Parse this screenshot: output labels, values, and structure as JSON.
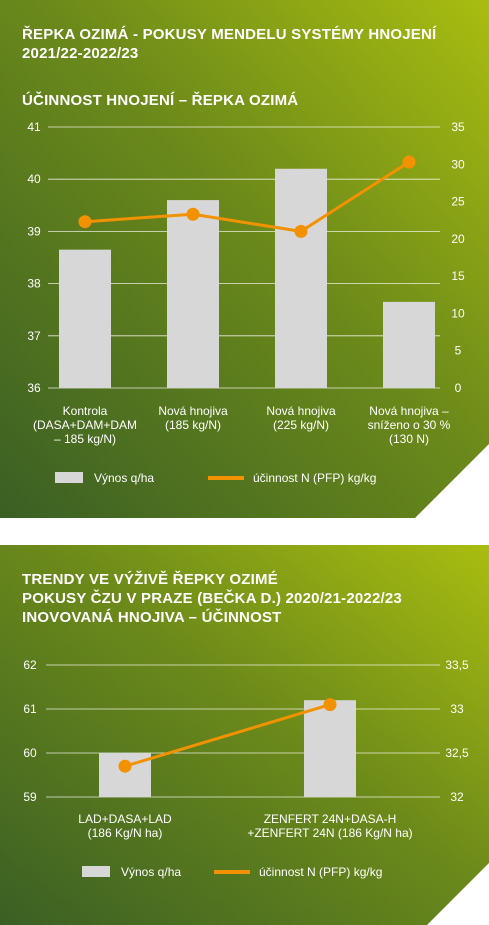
{
  "colors": {
    "bg_dark": "#3a5f24",
    "bg_light": "#a9bd10",
    "bar": "#d7d7d7",
    "line": "#f39200",
    "text": "#ffffff"
  },
  "chart_data": [
    {
      "type": "bar",
      "title": "ŘEPKA OZIMÁ - POKUSY MENDELU SYSTÉMY HNOJENÍ 2021/22-2022/23",
      "subtitle": "ÚČINNOST HNOJENÍ – ŘEPKA OZIMÁ",
      "categories": [
        [
          "Kontrola",
          "(DASA+DAM+DAM",
          "– 185 kg/N)"
        ],
        [
          "Nová hnojiva",
          "(185 kg/N)"
        ],
        [
          "Nová hnojiva",
          "(225 kg/N)"
        ],
        [
          "Nová hnojiva –",
          "sníženo o 30 %",
          "(130 N)"
        ]
      ],
      "series": [
        {
          "name": "Výnos q/ha",
          "type": "bar",
          "axis": "left",
          "values": [
            38.65,
            39.6,
            40.2,
            37.65
          ]
        },
        {
          "name": "účinnost N (PFP) kg/kg",
          "type": "line",
          "axis": "right",
          "values": [
            22.3,
            23.3,
            21.0,
            30.3
          ]
        }
      ],
      "y_left": {
        "ylim": [
          36,
          41
        ],
        "ticks": [
          "36",
          "37",
          "38",
          "39",
          "40",
          "41"
        ]
      },
      "y_right": {
        "ylim": [
          0,
          35
        ],
        "ticks": [
          "0",
          "5",
          "10",
          "15",
          "20",
          "25",
          "30",
          "35"
        ]
      },
      "grid": true,
      "legend": "bottom-left"
    },
    {
      "type": "bar",
      "title": "TRENDY VE VÝŽIVĚ ŘEPKY OZIMÉ POKUSY ČZU V PRAZE (BEČKA D.) 2020/21-2022/23 INOVOVANÁ HNOJIVA – ÚČINNOST",
      "categories": [
        [
          "LAD+DASA+LAD",
          "(186 Kg/N ha)"
        ],
        [
          "ZENFERT 24N+DASA-H",
          "+ZENFERT 24N (186 Kg/N ha)"
        ]
      ],
      "series": [
        {
          "name": "Výnos q/ha",
          "type": "bar",
          "axis": "left",
          "values": [
            60.0,
            61.2
          ]
        },
        {
          "name": "účinnost N (PFP) kg/kg",
          "type": "line",
          "axis": "right",
          "values": [
            32.35,
            33.05
          ]
        }
      ],
      "y_left": {
        "ylim": [
          59,
          62
        ],
        "ticks": [
          "59",
          "60",
          "61",
          "62"
        ]
      },
      "y_right": {
        "ylim": [
          32,
          33.5
        ],
        "ticks": [
          "32",
          "32,5",
          "33",
          "33,5"
        ]
      },
      "grid": true,
      "legend": "bottom-left"
    }
  ],
  "panels": [
    {
      "title_lines": [
        "ŘEPKA OZIMÁ - POKUSY MENDELU SYSTÉMY HNOJENÍ",
        "2021/22-2022/23"
      ],
      "subtitle": "ÚČINNOST HNOJENÍ – ŘEPKA OZIMÁ"
    },
    {
      "title_lines": [
        "TRENDY VE VÝŽIVĚ ŘEPKY OZIMÉ",
        "POKUSY ČZU V PRAZE (BEČKA D.) 2020/21-2022/23",
        "INOVOVANÁ HNOJIVA – ÚČINNOST"
      ]
    }
  ]
}
